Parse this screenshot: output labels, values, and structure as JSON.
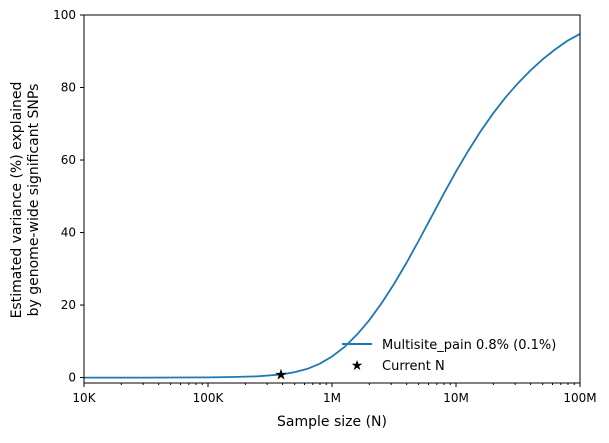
{
  "chart_data": {
    "type": "line",
    "xscale": "log",
    "xlabel": "Sample size (N)",
    "ylabel_lines": [
      "Estimated variance (%) explained",
      "by genome-wide significant SNPs"
    ],
    "xlim": [
      10000,
      100000000
    ],
    "ylim": [
      -1.5,
      100
    ],
    "xticks": [
      {
        "value": 10000,
        "label": "10K"
      },
      {
        "value": 100000,
        "label": "100K"
      },
      {
        "value": 1000000,
        "label": "1M"
      },
      {
        "value": 10000000,
        "label": "10M"
      },
      {
        "value": 100000000,
        "label": "100M"
      }
    ],
    "yticks": [
      {
        "value": 0,
        "label": "0"
      },
      {
        "value": 20,
        "label": "20"
      },
      {
        "value": 40,
        "label": "40"
      },
      {
        "value": 60,
        "label": "60"
      },
      {
        "value": 80,
        "label": "80"
      },
      {
        "value": 100,
        "label": "100"
      }
    ],
    "series": [
      {
        "name": "Multisite_pain 0.8% (0.1%)",
        "color": "#1f77b4",
        "log10_x": [
          4.0,
          4.5,
          5.0,
          5.2,
          5.4,
          5.5,
          5.6,
          5.7,
          5.8,
          5.9,
          6.0,
          6.1,
          6.2,
          6.3,
          6.4,
          6.5,
          6.6,
          6.7,
          6.8,
          6.9,
          7.0,
          7.1,
          7.2,
          7.3,
          7.4,
          7.5,
          7.6,
          7.7,
          7.8,
          7.9,
          8.0
        ],
        "y": [
          0,
          0,
          0.05,
          0.15,
          0.35,
          0.6,
          0.9,
          1.5,
          2.4,
          3.8,
          5.8,
          8.4,
          11.8,
          15.8,
          20.5,
          25.8,
          31.6,
          37.8,
          44.2,
          50.6,
          56.8,
          62.6,
          68.0,
          72.9,
          77.3,
          81.2,
          84.7,
          87.8,
          90.5,
          92.9,
          94.8
        ]
      }
    ],
    "markers": [
      {
        "name": "Current N",
        "x": 388000,
        "y": 0.8,
        "symbol": "star",
        "color": "#000000"
      }
    ],
    "legend": {
      "placement": "lower-right",
      "entries": [
        "Multisite_pain 0.8% (0.1%)",
        "Current N"
      ]
    },
    "grid": false
  }
}
